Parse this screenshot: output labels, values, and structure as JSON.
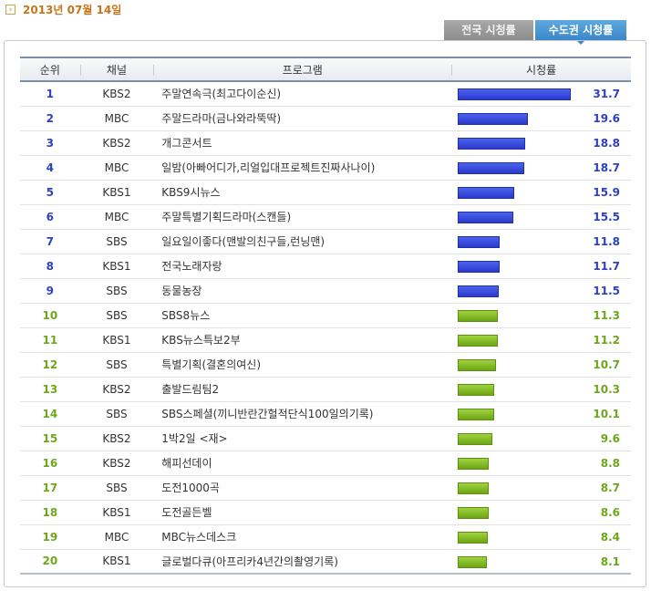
{
  "date": "2013년 07월 14일",
  "tabs": [
    {
      "label": "전국 시청률",
      "active": false
    },
    {
      "label": "수도권 시청률",
      "active": true
    }
  ],
  "columns": {
    "rank": "순위",
    "channel": "채널",
    "program": "프로그램",
    "rating": "시청률"
  },
  "colors": {
    "top_bar": "#2a39cc",
    "rest_bar": "#6ea615",
    "top_text": "#2e3fbf",
    "rest_text": "#6da71c"
  },
  "rating_max": 31.7,
  "rows": [
    {
      "rank": "1",
      "channel": "KBS2",
      "program": "주말연속극(최고다이순신)",
      "rating": "31.7"
    },
    {
      "rank": "2",
      "channel": "MBC",
      "program": "주말드라마(금나와라뚝딱)",
      "rating": "19.6"
    },
    {
      "rank": "3",
      "channel": "KBS2",
      "program": "개그콘서트",
      "rating": "18.8"
    },
    {
      "rank": "4",
      "channel": "MBC",
      "program": "일밤(아빠어디가,리얼입대프로젝트진짜사나이)",
      "rating": "18.7"
    },
    {
      "rank": "5",
      "channel": "KBS1",
      "program": "KBS9시뉴스",
      "rating": "15.9"
    },
    {
      "rank": "6",
      "channel": "MBC",
      "program": "주말특별기획드라마(스캔들)",
      "rating": "15.5"
    },
    {
      "rank": "7",
      "channel": "SBS",
      "program": "일요일이좋다(맨발의친구들,런닝맨)",
      "rating": "11.8"
    },
    {
      "rank": "8",
      "channel": "KBS1",
      "program": "전국노래자랑",
      "rating": "11.7"
    },
    {
      "rank": "9",
      "channel": "SBS",
      "program": "동물농장",
      "rating": "11.5"
    },
    {
      "rank": "10",
      "channel": "SBS",
      "program": "SBS8뉴스",
      "rating": "11.3"
    },
    {
      "rank": "11",
      "channel": "KBS1",
      "program": "KBS뉴스특보2부",
      "rating": "11.2"
    },
    {
      "rank": "12",
      "channel": "SBS",
      "program": "특별기획(결혼의여신)",
      "rating": "10.7"
    },
    {
      "rank": "13",
      "channel": "KBS2",
      "program": "출발드림팀2",
      "rating": "10.3"
    },
    {
      "rank": "14",
      "channel": "SBS",
      "program": "SBS스페셜(끼니반란간헐적단식100일의기록)",
      "rating": "10.1"
    },
    {
      "rank": "15",
      "channel": "KBS2",
      "program": "1박2일 <재>",
      "rating": "9.6"
    },
    {
      "rank": "16",
      "channel": "KBS2",
      "program": "해피선데이",
      "rating": "8.8"
    },
    {
      "rank": "17",
      "channel": "SBS",
      "program": "도전1000곡",
      "rating": "8.7"
    },
    {
      "rank": "18",
      "channel": "KBS1",
      "program": "도전골든벨",
      "rating": "8.6"
    },
    {
      "rank": "19",
      "channel": "MBC",
      "program": "MBC뉴스데스크",
      "rating": "8.4"
    },
    {
      "rank": "20",
      "channel": "KBS1",
      "program": "글로벌다큐(아프리카4년간의촬영기록)",
      "rating": "8.1"
    }
  ]
}
